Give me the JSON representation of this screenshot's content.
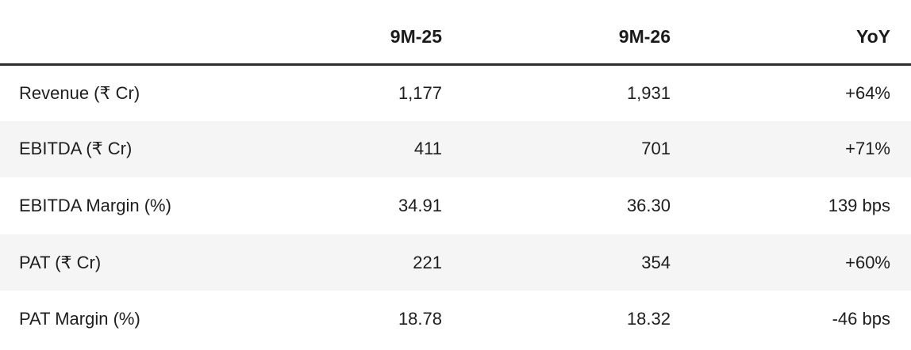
{
  "table": {
    "columns": [
      "",
      "9M-25",
      "9M-26",
      "YoY"
    ],
    "rows": [
      {
        "label": "Revenue (₹ Cr)",
        "v1": "1,177",
        "v2": "1,931",
        "yoy": "+64%"
      },
      {
        "label": "EBITDA (₹ Cr)",
        "v1": "411",
        "v2": "701",
        "yoy": "+71%"
      },
      {
        "label": "EBITDA Margin (%)",
        "v1": "34.91",
        "v2": "36.30",
        "yoy": "139 bps"
      },
      {
        "label": "PAT (₹ Cr)",
        "v1": "221",
        "v2": "354",
        "yoy": "+60%"
      },
      {
        "label": "PAT Margin (%)",
        "v1": "18.78",
        "v2": "18.32",
        "yoy": "-46 bps"
      }
    ],
    "colors": {
      "stripe": "#f5f5f5",
      "text": "#1e1e1e",
      "header_border": "#2b2b2b",
      "background": "#ffffff"
    }
  },
  "chart_data": {
    "type": "table",
    "title": "",
    "columns": [
      "",
      "9M-25",
      "9M-26",
      "YoY"
    ],
    "rows": [
      [
        "Revenue (₹ Cr)",
        "1,177",
        "1,931",
        "+64%"
      ],
      [
        "EBITDA (₹ Cr)",
        "411",
        "701",
        "+71%"
      ],
      [
        "EBITDA Margin (%)",
        "34.91",
        "36.30",
        "139 bps"
      ],
      [
        "PAT (₹ Cr)",
        "221",
        "354",
        "+60%"
      ],
      [
        "PAT Margin (%)",
        "18.78",
        "18.32",
        "-46 bps"
      ]
    ],
    "layout_hints": {
      "numeric_columns_right_aligned": true,
      "striped_rows": [
        1,
        3
      ],
      "header_rule": "thick-dark-bottom-border"
    }
  }
}
